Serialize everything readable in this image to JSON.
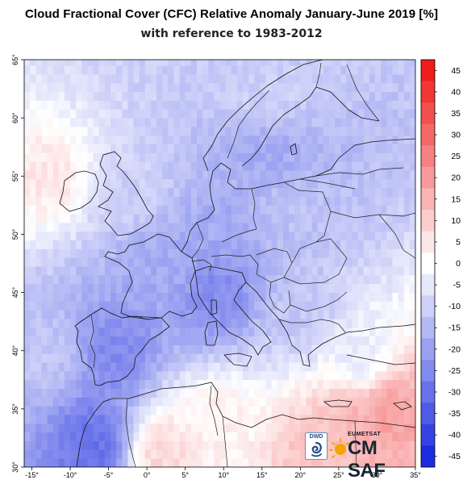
{
  "header": {
    "title": "Cloud Fractional Cover (CFC) Relative Anomaly January-June 2019 [%]",
    "subtitle": "with reference to 1983-2012"
  },
  "map": {
    "lon_range": [
      -16,
      35
    ],
    "lat_range": [
      30,
      65
    ],
    "x_ticks": [
      "-15°",
      "-10°",
      "-5°",
      "0°",
      "5°",
      "10°",
      "15°",
      "20°",
      "25°",
      "30°",
      "35°"
    ],
    "y_ticks": [
      "30°",
      "35°",
      "40°",
      "45°",
      "50°",
      "55°",
      "60°",
      "65°"
    ],
    "colorbar": {
      "min": -47.5,
      "max": 47.5,
      "step": 5,
      "labels": [
        "45",
        "40",
        "35",
        "30",
        "25",
        "20",
        "15",
        "10",
        "5",
        "0",
        "-5",
        "-10",
        "-15",
        "-20",
        "-25",
        "-30",
        "-35",
        "-40",
        "-45"
      ],
      "colors": {
        "strong_negative": "#1020dd",
        "neutral": "#ffffff",
        "strong_positive": "#ee1010"
      }
    },
    "anomaly_regions": [
      {
        "name": "Iberian Peninsula",
        "lon": -4,
        "lat": 40,
        "value": -25
      },
      {
        "name": "Morocco",
        "lon": -7,
        "lat": 32,
        "value": -30
      },
      {
        "name": "France",
        "lon": 2,
        "lat": 47,
        "value": -18
      },
      {
        "name": "Northern Italy / Alps",
        "lon": 9,
        "lat": 45,
        "value": -25
      },
      {
        "name": "Germany",
        "lon": 10,
        "lat": 51,
        "value": -18
      },
      {
        "name": "Poland",
        "lon": 19,
        "lat": 52,
        "value": -13
      },
      {
        "name": "Balkans",
        "lon": 20,
        "lat": 43,
        "value": -12
      },
      {
        "name": "Scandinavia",
        "lon": 16,
        "lat": 62,
        "value": -10
      },
      {
        "name": "Southern Sweden / Baltic",
        "lon": 16,
        "lat": 57,
        "value": -18
      },
      {
        "name": "British Isles",
        "lon": -2,
        "lat": 54,
        "value": -10
      },
      {
        "name": "North Atlantic west of Ireland",
        "lon": -13,
        "lat": 55,
        "value": 5
      },
      {
        "name": "Eastern Mediterranean south of Crete",
        "lon": 27,
        "lat": 34,
        "value": 15
      },
      {
        "name": "Cyprus region",
        "lon": 31,
        "lat": 35,
        "value": 20
      },
      {
        "name": "Atlantic off Portugal",
        "lon": -13,
        "lat": 40,
        "value": -12
      },
      {
        "name": "Aegean / Anatolia",
        "lon": 28,
        "lat": 39,
        "value": -5
      },
      {
        "name": "Libya / Egypt coast",
        "lon": 22,
        "lat": 31,
        "value": 12
      },
      {
        "name": "Western Sahara / Algeria interior",
        "lon": 2,
        "lat": 31,
        "value": 8
      },
      {
        "name": "Tunisia",
        "lon": 9,
        "lat": 34,
        "value": 3
      }
    ]
  },
  "logos": {
    "dwd": "DWD",
    "eumetsat": "EUMETSAT",
    "cmsaf": "CM SAF"
  }
}
